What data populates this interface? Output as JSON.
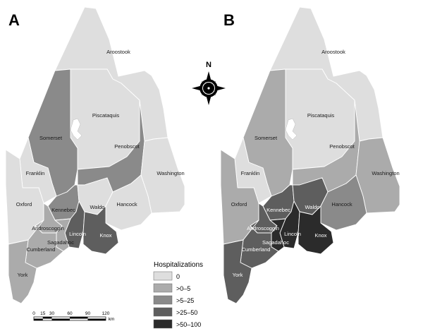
{
  "panels": [
    {
      "letter": "A",
      "counties": [
        {
          "id": "aroostook",
          "name": "Aroostook",
          "bin": 0
        },
        {
          "id": "piscataquis",
          "name": "Piscataquis",
          "bin": 0
        },
        {
          "id": "somerset",
          "name": "Somerset",
          "bin": 2
        },
        {
          "id": "penobscot",
          "name": "Penobscot",
          "bin": 2
        },
        {
          "id": "washington",
          "name": "Washington",
          "bin": 0
        },
        {
          "id": "franklin",
          "name": "Franklin",
          "bin": 0
        },
        {
          "id": "oxford",
          "name": "Oxford",
          "bin": 0
        },
        {
          "id": "kennebec",
          "name": "Kennebec",
          "bin": 2
        },
        {
          "id": "waldo",
          "name": "Waldo",
          "bin": 0
        },
        {
          "id": "hancock",
          "name": "Hancock",
          "bin": 0
        },
        {
          "id": "androscoggin",
          "name": "Androscoggin",
          "bin": 1
        },
        {
          "id": "lincoln",
          "name": "Lincoln",
          "bin": 3
        },
        {
          "id": "knox",
          "name": "Knox",
          "bin": 3
        },
        {
          "id": "sagadahoc",
          "name": "Sagadahoc",
          "bin": 1
        },
        {
          "id": "cumberland",
          "name": "Cumberland",
          "bin": 1
        },
        {
          "id": "york",
          "name": "York",
          "bin": 1
        }
      ]
    },
    {
      "letter": "B",
      "counties": [
        {
          "id": "aroostook",
          "name": "Aroostook",
          "bin": 0
        },
        {
          "id": "piscataquis",
          "name": "Piscataquis",
          "bin": 0
        },
        {
          "id": "somerset",
          "name": "Somerset",
          "bin": 1
        },
        {
          "id": "penobscot",
          "name": "Penobscot",
          "bin": 1
        },
        {
          "id": "washington",
          "name": "Washington",
          "bin": 1
        },
        {
          "id": "franklin",
          "name": "Franklin",
          "bin": 0
        },
        {
          "id": "oxford",
          "name": "Oxford",
          "bin": 1
        },
        {
          "id": "kennebec",
          "name": "Kennebec",
          "bin": 3
        },
        {
          "id": "waldo",
          "name": "Waldo",
          "bin": 3
        },
        {
          "id": "hancock",
          "name": "Hancock",
          "bin": 2
        },
        {
          "id": "androscoggin",
          "name": "Androscoggin",
          "bin": 3
        },
        {
          "id": "lincoln",
          "name": "Lincoln",
          "bin": 4
        },
        {
          "id": "knox",
          "name": "Knox",
          "bin": 4
        },
        {
          "id": "sagadahoc",
          "name": "Sagadahoc",
          "bin": 4
        },
        {
          "id": "cumberland",
          "name": "Cumberland",
          "bin": 3
        },
        {
          "id": "york",
          "name": "York",
          "bin": 3
        }
      ]
    }
  ],
  "legend": {
    "title": "Hospitalizations",
    "bins": [
      {
        "label": "0",
        "color": "#dedede"
      },
      {
        "label": ">0–5",
        "color": "#ababab"
      },
      {
        "label": ">5–25",
        "color": "#8a8a8a"
      },
      {
        "label": ">25–50",
        "color": "#5e5e5e"
      },
      {
        "label": ">50–100",
        "color": "#2b2b2b"
      }
    ]
  },
  "compass": {
    "north_label": "N"
  },
  "scale_bar": {
    "ticks": [
      "0",
      "15",
      "30",
      "60",
      "90",
      "120"
    ],
    "unit": "km"
  }
}
